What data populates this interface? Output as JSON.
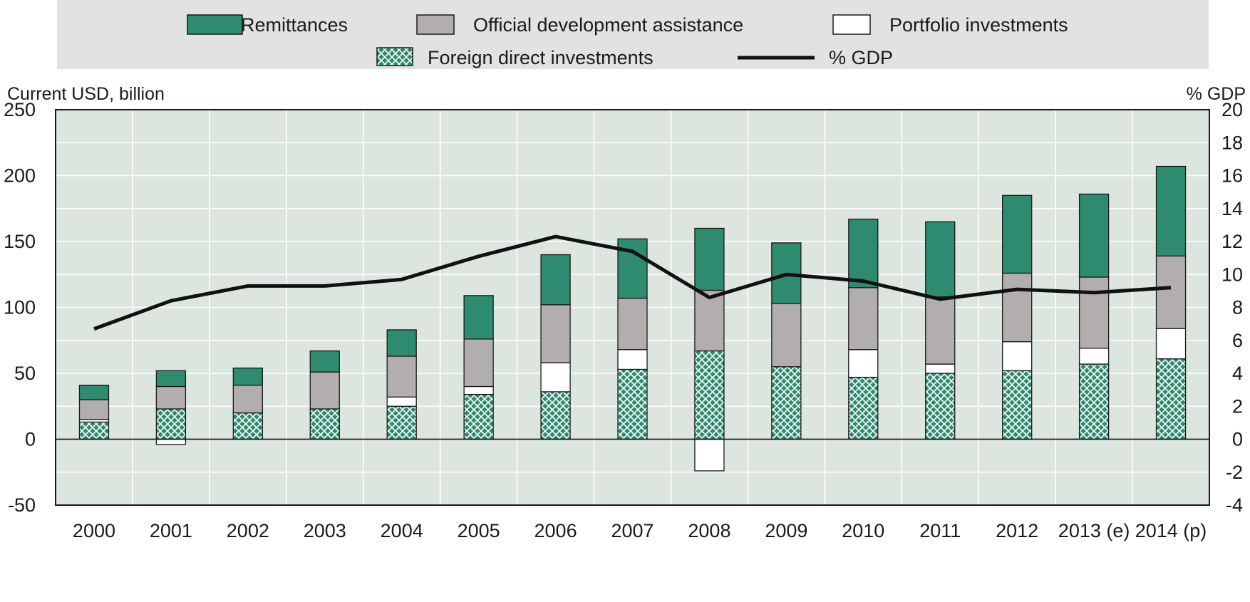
{
  "chart_data": {
    "type": "bar",
    "stacked": true,
    "categories": [
      "2000",
      "2001",
      "2002",
      "2003",
      "2004",
      "2005",
      "2006",
      "2007",
      "2008",
      "2009",
      "2010",
      "2011",
      "2012",
      "2013 (e)",
      "2014 (p)"
    ],
    "series": [
      {
        "name": "Foreign direct investments",
        "axis": "left",
        "color": "#2e8b70",
        "pattern": "crosshatch",
        "values": [
          13,
          23,
          20,
          23,
          25,
          34,
          36,
          53,
          67,
          55,
          47,
          50,
          52,
          57,
          61
        ]
      },
      {
        "name": "Portfolio investments",
        "axis": "left",
        "color": "#ffffff",
        "values": [
          2,
          -4,
          0,
          0,
          7,
          6,
          22,
          15,
          -24,
          0,
          21,
          7,
          22,
          12,
          23
        ]
      },
      {
        "name": "Official development assistance",
        "axis": "left",
        "color": "#b3aeae",
        "values": [
          15,
          17,
          21,
          28,
          31,
          36,
          44,
          39,
          46,
          48,
          47,
          51,
          52,
          54,
          55
        ]
      },
      {
        "name": "Remittances",
        "axis": "left",
        "color": "#2e8b70",
        "values": [
          11,
          12,
          13,
          16,
          20,
          33,
          38,
          45,
          47,
          46,
          52,
          57,
          59,
          63,
          68
        ]
      },
      {
        "name": "% GDP",
        "type": "line",
        "axis": "right",
        "color": "#111111",
        "values": [
          6.7,
          8.4,
          9.3,
          9.3,
          9.7,
          11.1,
          12.3,
          11.4,
          8.6,
          10.0,
          9.6,
          8.5,
          9.1,
          8.9,
          9.2
        ]
      }
    ],
    "ylabel": "Current USD, billion",
    "ylabel_right": "% GDP",
    "ylim": [
      -50,
      250
    ],
    "yticks": [
      "250",
      "200",
      "150",
      "100",
      "50",
      "0",
      "-50"
    ],
    "ylim_right": [
      -4,
      20
    ],
    "yticks_right": [
      "20",
      "18",
      "16",
      "14",
      "12",
      "10",
      "8",
      "6",
      "4",
      "2",
      "0",
      "-2",
      "-4"
    ],
    "grid": true,
    "legend_position": "top",
    "colors": {
      "plot_background": "#dce6df",
      "legend_background": "#e2e2e2",
      "grid": "#ffffff"
    }
  }
}
